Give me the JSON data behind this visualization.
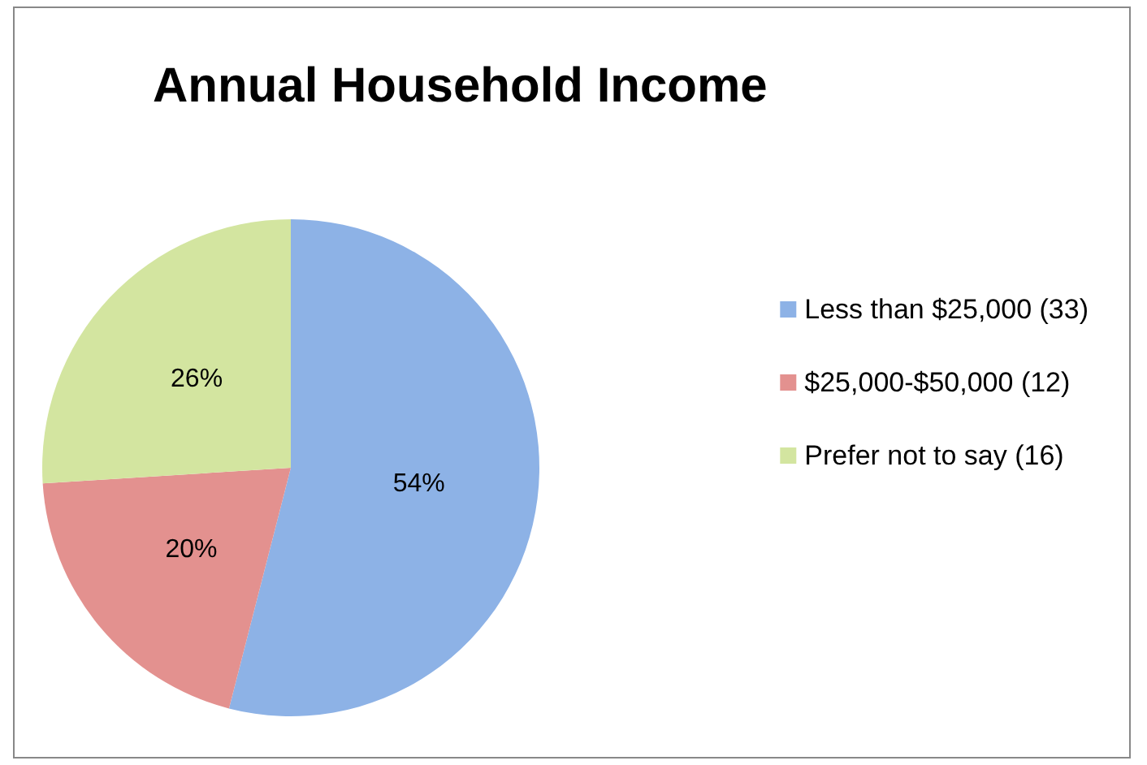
{
  "chart_data": {
    "type": "pie",
    "title": "Annual Household Income",
    "categories": [
      "Less than $25,000 (33)",
      "$25,000-$50,000 (12)",
      "Prefer not to say (16)"
    ],
    "values": [
      54,
      20,
      26
    ],
    "value_labels": [
      "54%",
      "20%",
      "26%"
    ],
    "colors": [
      "#8db2e6",
      "#e3918f",
      "#d3e5a0"
    ],
    "legend": "right"
  }
}
